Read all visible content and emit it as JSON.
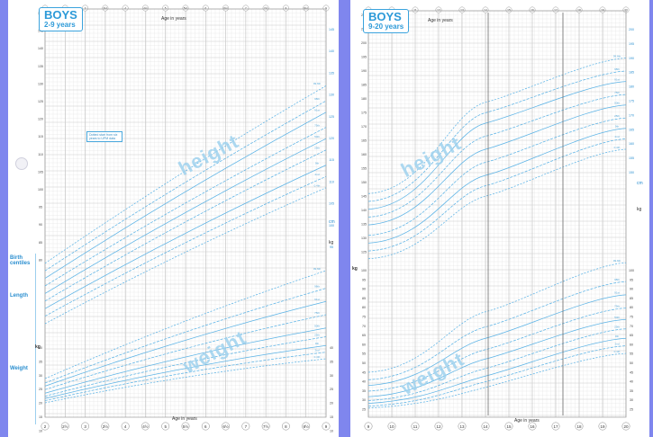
{
  "left": {
    "title": "BOYS",
    "subtitle": "2-9 years",
    "axis_title_top": "Age in years",
    "axis_title_bottom": "Age in years",
    "note": "Dotted start from six years to UPM data",
    "watermark_height": "height",
    "watermark_weight": "weight",
    "birth_section": "Birth centiles",
    "length_label": "Length",
    "weight_label": "Weight",
    "ticks_age": [
      "2",
      "2½",
      "3",
      "3½",
      "4",
      "4½",
      "5",
      "5½",
      "6",
      "6½",
      "7",
      "7½",
      "8",
      "8½",
      "9"
    ],
    "ticks_height_cm": [
      "150",
      "145",
      "140",
      "135",
      "130",
      "125",
      "120",
      "115",
      "110",
      "105",
      "100",
      "95",
      "90",
      "85",
      "80"
    ],
    "ticks_height_right": [
      "145",
      "140",
      "135",
      "130",
      "125",
      "120",
      "115",
      "110",
      "105",
      "100",
      "95"
    ],
    "ticks_weight_kg": [
      "40",
      "35",
      "30",
      "25",
      "20",
      "15",
      "10"
    ],
    "unit_cm": "cm",
    "unit_kg_left": "kg",
    "unit_kg_right": "kg"
  },
  "right": {
    "title": "BOYS",
    "subtitle": "9-20 years",
    "axis_title_top": "Age in years",
    "axis_title_bottom": "Age in years",
    "watermark_height": "height",
    "watermark_weight": "weight",
    "ticks_age": [
      "9",
      "10",
      "11",
      "12",
      "13",
      "14",
      "15",
      "16",
      "17",
      "18",
      "19",
      "20"
    ],
    "ticks_height_cm": [
      "210",
      "205",
      "200",
      "195",
      "190",
      "185",
      "180",
      "175",
      "170",
      "165",
      "160",
      "155",
      "150",
      "145",
      "140",
      "135",
      "130",
      "125"
    ],
    "ticks_height_right": [
      "200",
      "195",
      "190",
      "185",
      "180",
      "175",
      "170",
      "165",
      "160",
      "155",
      "150"
    ],
    "ticks_weight_kg": [
      "100",
      "95",
      "90",
      "85",
      "80",
      "75",
      "70",
      "65",
      "60",
      "55",
      "50",
      "45",
      "40",
      "35",
      "30",
      "25"
    ],
    "unit_cm": "cm",
    "unit_kg_left": "kg",
    "unit_kg_right": "kg"
  },
  "colors": {
    "background": "#7f86ee",
    "centile": "#5bb3e6",
    "grid": "#d5d5d5",
    "watermark": "#9fd2ee",
    "title": "#2d9ad8"
  },
  "chart_data": [
    {
      "type": "line",
      "title": "BOYS 2-9 years",
      "xlabel": "Age in years",
      "ylabel": "",
      "xlim": [
        2,
        9
      ],
      "ylim_height": [
        80,
        150
      ],
      "ylim_weight": [
        10,
        40
      ],
      "centiles": [
        "0.4th",
        "2nd",
        "9th",
        "25th",
        "50th",
        "75th",
        "91st",
        "98th",
        "99.6th"
      ],
      "height_series": [
        {
          "name": "0.4th",
          "x": [
            2,
            9
          ],
          "values": [
            80,
            116
          ]
        },
        {
          "name": "2nd",
          "x": [
            2,
            9
          ],
          "values": [
            82,
            119
          ]
        },
        {
          "name": "9th",
          "x": [
            2,
            9
          ],
          "values": [
            84,
            122
          ]
        },
        {
          "name": "25th",
          "x": [
            2,
            9
          ],
          "values": [
            86,
            126
          ]
        },
        {
          "name": "50th",
          "x": [
            2,
            9
          ],
          "values": [
            88,
            129
          ]
        },
        {
          "name": "75th",
          "x": [
            2,
            9
          ],
          "values": [
            90,
            132
          ]
        },
        {
          "name": "91st",
          "x": [
            2,
            9
          ],
          "values": [
            92,
            136
          ]
        },
        {
          "name": "98th",
          "x": [
            2,
            9
          ],
          "values": [
            94,
            139
          ]
        },
        {
          "name": "99.6th",
          "x": [
            2,
            9
          ],
          "values": [
            96,
            143
          ]
        }
      ],
      "weight_series": [
        {
          "name": "0.4th",
          "x": [
            2,
            9
          ],
          "values": [
            10,
            20
          ]
        },
        {
          "name": "2nd",
          "x": [
            2,
            9
          ],
          "values": [
            10.5,
            21.5
          ]
        },
        {
          "name": "9th",
          "x": [
            2,
            9
          ],
          "values": [
            11,
            23
          ]
        },
        {
          "name": "25th",
          "x": [
            2,
            9
          ],
          "values": [
            11.5,
            25
          ]
        },
        {
          "name": "50th",
          "x": [
            2,
            9
          ],
          "values": [
            12.2,
            27
          ]
        },
        {
          "name": "75th",
          "x": [
            2,
            9
          ],
          "values": [
            13,
            30
          ]
        },
        {
          "name": "91st",
          "x": [
            2,
            9
          ],
          "values": [
            13.8,
            33
          ]
        },
        {
          "name": "98th",
          "x": [
            2,
            9
          ],
          "values": [
            14.5,
            36
          ]
        },
        {
          "name": "99.6th",
          "x": [
            2,
            9
          ],
          "values": [
            15.5,
            40
          ]
        }
      ]
    },
    {
      "type": "line",
      "title": "BOYS 9-20 years",
      "xlabel": "Age in years",
      "ylabel": "",
      "xlim": [
        9,
        20
      ],
      "ylim_height": [
        120,
        210
      ],
      "ylim_weight": [
        20,
        100
      ],
      "centiles": [
        "0.4th",
        "2nd",
        "9th",
        "25th",
        "50th",
        "75th",
        "91st",
        "98th",
        "99.6th"
      ],
      "height_series": [
        {
          "name": "0.4th",
          "x": [
            9,
            14,
            20
          ],
          "values": [
            118,
            142,
            160
          ]
        },
        {
          "name": "2nd",
          "x": [
            9,
            14,
            20
          ],
          "values": [
            121,
            146,
            164
          ]
        },
        {
          "name": "9th",
          "x": [
            9,
            14,
            20
          ],
          "values": [
            124,
            150,
            168
          ]
        },
        {
          "name": "25th",
          "x": [
            9,
            14,
            20
          ],
          "values": [
            127,
            155,
            172
          ]
        },
        {
          "name": "50th",
          "x": [
            9,
            14,
            20
          ],
          "values": [
            131,
            160,
            177
          ]
        },
        {
          "name": "75th",
          "x": [
            9,
            14,
            20
          ],
          "values": [
            134,
            165,
            181
          ]
        },
        {
          "name": "91st",
          "x": [
            9,
            14,
            20
          ],
          "values": [
            137,
            170,
            186
          ]
        },
        {
          "name": "98th",
          "x": [
            9,
            14,
            20
          ],
          "values": [
            140,
            174,
            190
          ]
        },
        {
          "name": "99.6th",
          "x": [
            9,
            14,
            20
          ],
          "values": [
            143,
            178,
            195
          ]
        }
      ],
      "weight_series": [
        {
          "name": "0.4th",
          "x": [
            9,
            14,
            20
          ],
          "values": [
            21,
            32,
            50
          ]
        },
        {
          "name": "2nd",
          "x": [
            9,
            14,
            20
          ],
          "values": [
            22,
            35,
            54
          ]
        },
        {
          "name": "9th",
          "x": [
            9,
            14,
            20
          ],
          "values": [
            23.5,
            38,
            58
          ]
        },
        {
          "name": "25th",
          "x": [
            9,
            14,
            20
          ],
          "values": [
            25,
            42,
            63
          ]
        },
        {
          "name": "50th",
          "x": [
            9,
            14,
            20
          ],
          "values": [
            27,
            47,
            68
          ]
        },
        {
          "name": "75th",
          "x": [
            9,
            14,
            20
          ],
          "values": [
            30,
            52,
            74
          ]
        },
        {
          "name": "91st",
          "x": [
            9,
            14,
            20
          ],
          "values": [
            33,
            58,
            81
          ]
        },
        {
          "name": "98th",
          "x": [
            9,
            14,
            20
          ],
          "values": [
            36,
            64,
            88
          ]
        },
        {
          "name": "99.6th",
          "x": [
            9,
            14,
            20
          ],
          "values": [
            40,
            72,
            98
          ]
        }
      ]
    }
  ]
}
